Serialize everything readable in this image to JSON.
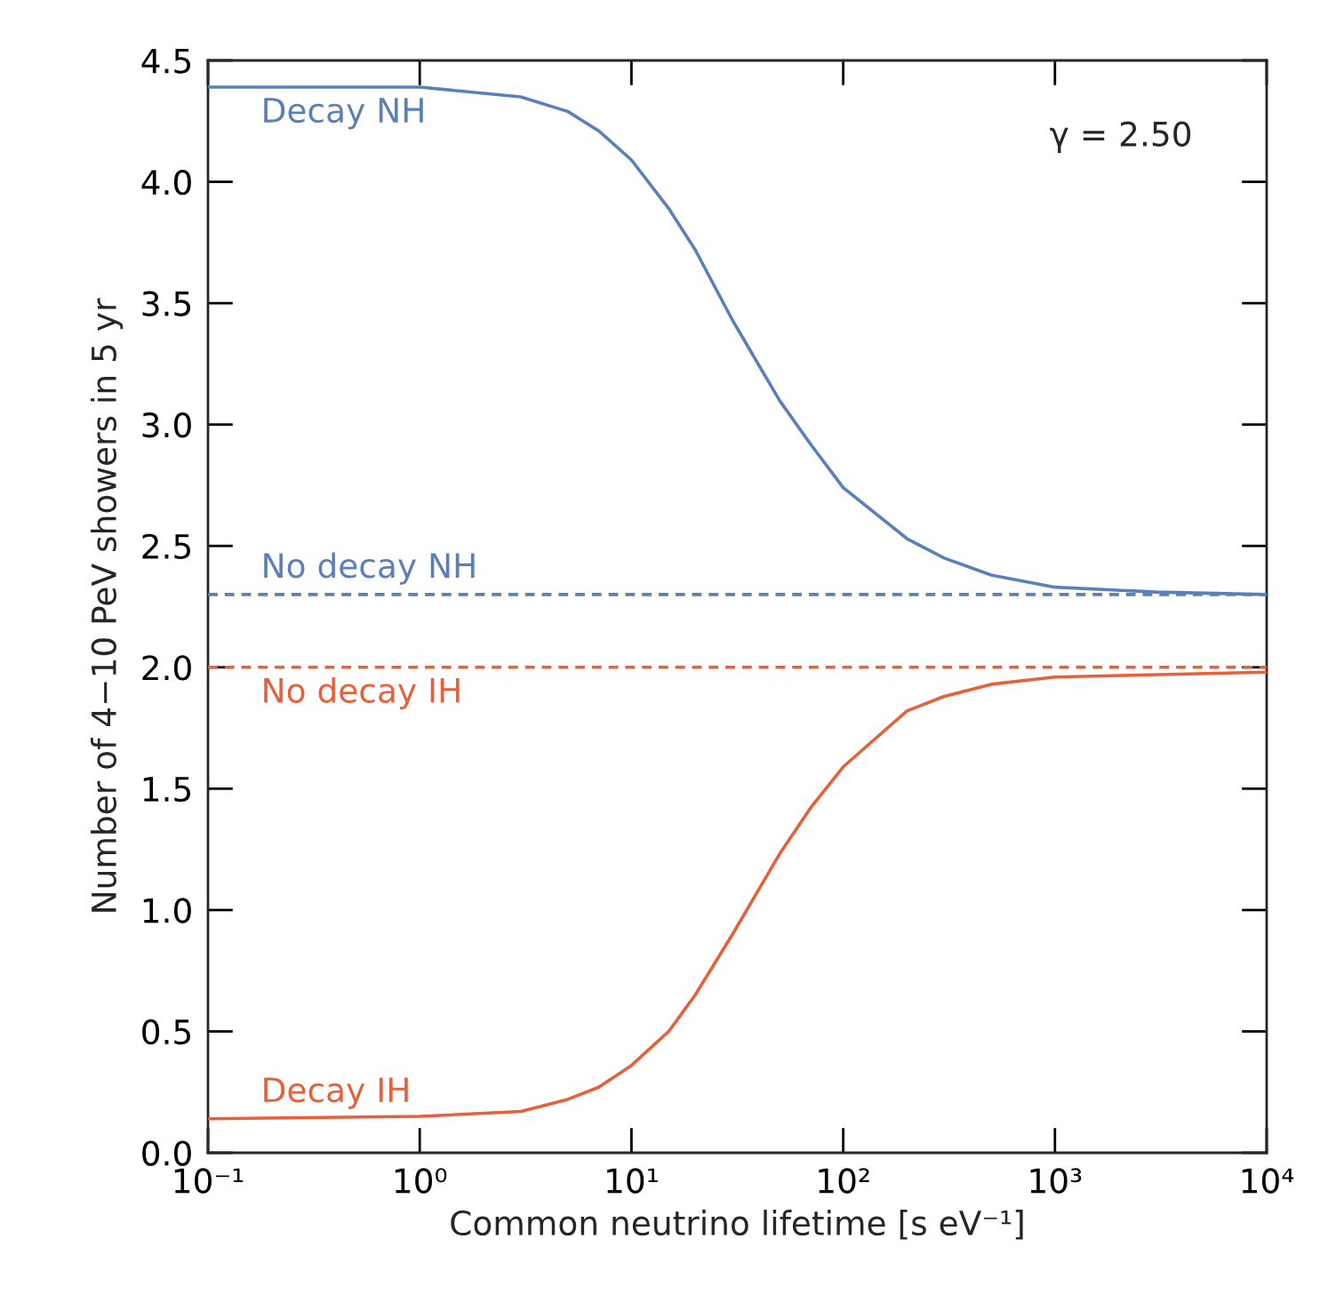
{
  "chart_data": {
    "type": "line",
    "xlabel": "Common neutrino lifetime [s eV⁻¹]",
    "ylabel": "Number of 4−10 PeV showers in 5 yr",
    "annotations": [
      "γ = 2.50"
    ],
    "log": "x",
    "xlim": [
      0.1,
      10000
    ],
    "ylim": [
      0,
      4.5
    ],
    "xticks": [
      {
        "value": 0.1,
        "label": "10⁻¹"
      },
      {
        "value": 1,
        "label": "10⁰"
      },
      {
        "value": 10,
        "label": "10¹"
      },
      {
        "value": 100,
        "label": "10²"
      },
      {
        "value": 1000,
        "label": "10³"
      },
      {
        "value": 10000,
        "label": "10⁴"
      }
    ],
    "yticks": [
      {
        "value": 0,
        "label": "0.0"
      },
      {
        "value": 0.5,
        "label": "0.5"
      },
      {
        "value": 1,
        "label": "1.0"
      },
      {
        "value": 1.5,
        "label": "1.5"
      },
      {
        "value": 2,
        "label": "2.0"
      },
      {
        "value": 2.5,
        "label": "2.5"
      },
      {
        "value": 3,
        "label": "3.0"
      },
      {
        "value": 3.5,
        "label": "3.5"
      },
      {
        "value": 4,
        "label": "4.0"
      },
      {
        "value": 4.5,
        "label": "4.5"
      }
    ],
    "grid": false,
    "legend": false,
    "series": [
      {
        "name": "Decay NH",
        "color": "#5b7fb8",
        "line_style": "solid",
        "x": [
          0.1,
          1,
          3,
          5,
          7,
          10,
          15,
          20,
          30,
          50,
          70,
          100,
          200,
          300,
          500,
          1000,
          3000,
          10000
        ],
        "values": [
          4.39,
          4.39,
          4.35,
          4.29,
          4.21,
          4.09,
          3.89,
          3.72,
          3.43,
          3.1,
          2.92,
          2.74,
          2.53,
          2.45,
          2.38,
          2.33,
          2.31,
          2.3
        ]
      },
      {
        "name": "No decay NH",
        "color": "#5b7fb8",
        "line_style": "dashed",
        "x": [
          0.1,
          10000
        ],
        "values": [
          2.3,
          2.3
        ]
      },
      {
        "name": "No decay IH",
        "color": "#e8603a",
        "line_style": "dashed",
        "x": [
          0.1,
          10000
        ],
        "values": [
          2.0,
          2.0
        ]
      },
      {
        "name": "Decay IH",
        "color": "#e8603a",
        "line_style": "solid",
        "x": [
          0.1,
          1,
          3,
          5,
          7,
          10,
          15,
          20,
          30,
          50,
          70,
          100,
          200,
          300,
          500,
          1000,
          10000
        ],
        "values": [
          0.14,
          0.15,
          0.17,
          0.22,
          0.27,
          0.36,
          0.5,
          0.65,
          0.9,
          1.23,
          1.42,
          1.59,
          1.82,
          1.88,
          1.93,
          1.96,
          1.98
        ]
      }
    ]
  }
}
